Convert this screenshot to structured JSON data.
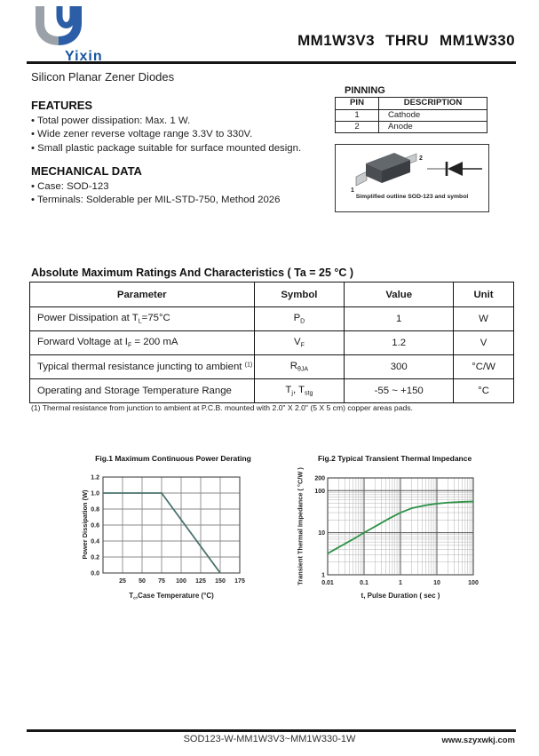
{
  "header": {
    "brand": "Yixin",
    "title": "MM1W3V3 THRU MM1W330",
    "subtitle": "Silicon Planar Zener Diodes"
  },
  "features": {
    "heading": "FEATURES",
    "items": [
      "Total power dissipation: Max. 1 W.",
      "Wide zener reverse voltage range 3.3V to 330V.",
      "Small plastic package suitable for surface mounted design."
    ]
  },
  "mechanical": {
    "heading": "MECHANICAL DATA",
    "items": [
      "Case: SOD-123",
      "Terminals: Solderable per MIL-STD-750, Method 2026"
    ]
  },
  "pinning": {
    "heading": "PINNING",
    "columns": [
      "PIN",
      "DESCRIPTION"
    ],
    "rows": [
      [
        "1",
        "Cathode"
      ],
      [
        "2",
        "Anode"
      ]
    ],
    "pin1_label": "1",
    "pin2_label": "2",
    "caption": "Simplified outline SOD-123 and symbol"
  },
  "ratings": {
    "heading": "Absolute Maximum Ratings And Characteristics  ( Ta = 25 °C )",
    "columns": [
      "Parameter",
      "Symbol",
      "Value",
      "Unit"
    ],
    "rows": [
      {
        "parameter": [
          {
            "t": "Power Dissipation at T"
          },
          {
            "sub": "L"
          },
          {
            "t": "=75°C"
          }
        ],
        "symbol": [
          {
            "t": "P"
          },
          {
            "sub": "D"
          }
        ],
        "value": "1",
        "unit": "W"
      },
      {
        "parameter": [
          {
            "t": "Forward Voltage at I"
          },
          {
            "sub": "F"
          },
          {
            "t": " = 200 mA"
          }
        ],
        "symbol": [
          {
            "t": "V"
          },
          {
            "sub": "F"
          }
        ],
        "value": "1.2",
        "unit": "V"
      },
      {
        "parameter": [
          {
            "t": "Typical thermal resistance juncting to ambient "
          },
          {
            "sup": "(1)"
          }
        ],
        "symbol": [
          {
            "t": "R"
          },
          {
            "sub": "θJA"
          }
        ],
        "value": "300",
        "unit": "°C/W"
      },
      {
        "parameter": [
          {
            "t": "Operating and Storage Temperature Range"
          }
        ],
        "symbol": [
          {
            "t": "T"
          },
          {
            "sub": "j"
          },
          {
            "t": ", T"
          },
          {
            "sub": "stg"
          }
        ],
        "value": "-55 ~ +150",
        "unit": "°C"
      }
    ],
    "footnote": "(1)  Thermal resistance from junction to ambient at P.C.B. mounted with 2.0\" X 2.0\" (5 X 5 cm) copper areas pads."
  },
  "chart_data": [
    {
      "type": "line",
      "title": "Fig.1  Maximum Continuous Power Derating",
      "ylabel": "Power Dissipation (W)",
      "xlabel_rich": [
        {
          "t": "T"
        },
        {
          "sub": "c"
        },
        {
          "t": ",Case Temperature (°C)"
        }
      ],
      "xlim": [
        0,
        175
      ],
      "ylim": [
        0,
        1.2
      ],
      "xticks": [
        25,
        50,
        75,
        100,
        125,
        150,
        175
      ],
      "xtick_labels": [
        "25",
        "50",
        "75",
        "100",
        "125",
        "150",
        "175"
      ],
      "yticks": [
        0,
        0.2,
        0.4,
        0.6,
        0.8,
        1.0,
        1.2
      ],
      "ytick_labels": [
        "0.0",
        "0.2",
        "0.4",
        "0.6",
        "0.8",
        "1.0",
        "1.2"
      ],
      "grid": true,
      "series": [
        {
          "name": "power-derating",
          "x": [
            0,
            75,
            150
          ],
          "y": [
            1.0,
            1.0,
            0.0
          ],
          "color": "#4a736e"
        }
      ]
    },
    {
      "type": "line-loglog",
      "title": "Fig.2  Typical Transient Thermal Impedance",
      "ylabel": "Transient Thermal Impedance ( °C/W )",
      "xlabel": "t, Pulse Duration ( sec )",
      "xlim": [
        0.01,
        100
      ],
      "ylim": [
        1,
        200
      ],
      "xticks": [
        0.01,
        0.1,
        1,
        10,
        100
      ],
      "xtick_labels": [
        "0.01",
        "0.1",
        "1",
        "10",
        "100"
      ],
      "yticks": [
        1,
        10,
        100,
        200
      ],
      "ytick_labels": [
        "1",
        "10",
        "100",
        "200"
      ],
      "grid": true,
      "series": [
        {
          "name": "transient-thermal-impedance",
          "x": [
            0.01,
            0.02,
            0.05,
            0.1,
            0.2,
            0.5,
            1,
            2,
            5,
            10,
            20,
            50,
            100
          ],
          "y": [
            3.2,
            4.5,
            7.0,
            10.0,
            14.0,
            22.0,
            30.0,
            38.0,
            45.0,
            49.0,
            52.0,
            54.0,
            55.0
          ],
          "color": "#2e9247"
        }
      ]
    }
  ],
  "footer": {
    "doc": "SOD123-W-MM1W3V3~MM1W330-1W",
    "website": "www.szyxwkj.com"
  },
  "colors": {
    "logo_gray": "#9aa1a8",
    "logo_blue": "#2b5ea7",
    "fig1_line": "#4a736e",
    "fig2_line": "#2e9247"
  }
}
